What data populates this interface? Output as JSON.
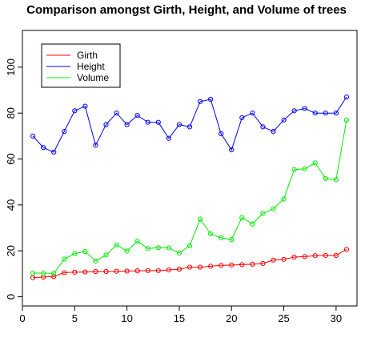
{
  "chart_data": {
    "type": "line",
    "title": "Comparison amongst Girth, Height, and Volume of trees",
    "xlabel": "",
    "ylabel": "",
    "xlim": [
      0,
      32
    ],
    "ylim": [
      -4,
      116
    ],
    "x_ticks": [
      0,
      5,
      10,
      15,
      20,
      25,
      30
    ],
    "y_ticks": [
      0,
      20,
      40,
      60,
      80,
      100
    ],
    "grid": false,
    "legend_position": "top-left",
    "x": [
      1,
      2,
      3,
      4,
      5,
      6,
      7,
      8,
      9,
      10,
      11,
      12,
      13,
      14,
      15,
      16,
      17,
      18,
      19,
      20,
      21,
      22,
      23,
      24,
      25,
      26,
      27,
      28,
      29,
      30,
      31
    ],
    "series": [
      {
        "name": "Girth",
        "color": "#ff0000",
        "values": [
          8.3,
          8.6,
          8.8,
          10.5,
          10.7,
          10.8,
          11.0,
          11.0,
          11.1,
          11.2,
          11.3,
          11.4,
          11.4,
          11.7,
          12.0,
          12.9,
          12.9,
          13.3,
          13.7,
          13.8,
          14.0,
          14.2,
          14.5,
          16.0,
          16.3,
          17.3,
          17.5,
          17.9,
          18.0,
          18.0,
          20.6
        ]
      },
      {
        "name": "Height",
        "color": "#0000ff",
        "values": [
          70,
          65,
          63,
          72,
          81,
          83,
          66,
          75,
          80,
          75,
          79,
          76,
          76,
          69,
          75,
          74,
          85,
          86,
          71,
          64,
          78,
          80,
          74,
          72,
          77,
          81,
          82,
          80,
          80,
          80,
          87
        ]
      },
      {
        "name": "Volume",
        "color": "#00ee00",
        "values": [
          10.3,
          10.3,
          10.2,
          16.4,
          18.8,
          19.7,
          15.6,
          18.2,
          22.6,
          19.9,
          24.2,
          21.0,
          21.4,
          21.3,
          19.1,
          22.2,
          33.8,
          27.4,
          25.7,
          24.9,
          34.5,
          31.7,
          36.3,
          38.3,
          42.6,
          55.4,
          55.7,
          58.3,
          51.5,
          51.0,
          77.0
        ]
      }
    ]
  }
}
